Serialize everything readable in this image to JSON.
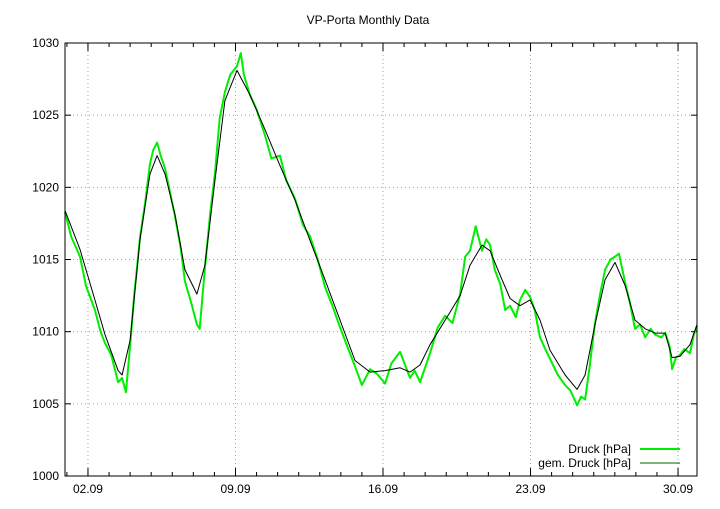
{
  "chart_data": {
    "type": "line",
    "title": "VP-Porta Monthly Data",
    "xlabel": "",
    "ylabel": "",
    "xlim": [
      0.91,
      30.9
    ],
    "ylim": [
      1000,
      1030
    ],
    "grid": true,
    "legend_position": "bottom-right",
    "y_ticks": [
      1000,
      1005,
      1010,
      1015,
      1020,
      1025,
      1030
    ],
    "y_tick_labels": [
      "1000",
      "1005",
      "1010",
      "1015",
      "1020",
      "1025",
      "1030"
    ],
    "x_ticks": [
      2,
      9,
      16,
      23,
      30
    ],
    "x_tick_labels": [
      "02.09",
      "09.09",
      "16.09",
      "23.09",
      "30.09"
    ],
    "x_minor_step": 1,
    "x_unit": "day of September",
    "series": [
      {
        "name": "Druck [hPa]",
        "color": "#00ee00",
        "x": [
          0.91,
          1.2,
          1.62,
          1.9,
          2.33,
          2.6,
          2.81,
          3.1,
          3.43,
          3.62,
          3.8,
          4.0,
          4.2,
          4.47,
          4.7,
          4.94,
          5.1,
          5.28,
          5.45,
          5.66,
          5.9,
          6.13,
          6.4,
          6.6,
          6.9,
          7.17,
          7.3,
          7.55,
          7.8,
          8.03,
          8.25,
          8.5,
          8.75,
          9.07,
          9.25,
          9.4,
          9.69,
          10.0,
          10.4,
          10.7,
          11.11,
          11.4,
          11.83,
          12.2,
          12.54,
          12.9,
          13.25,
          13.6,
          13.96,
          14.3,
          14.67,
          15.0,
          15.39,
          15.7,
          16.1,
          16.4,
          16.81,
          17.28,
          17.5,
          17.76,
          18.23,
          18.6,
          18.95,
          19.3,
          19.66,
          19.9,
          20.13,
          20.4,
          20.7,
          20.9,
          21.08,
          21.3,
          21.56,
          21.8,
          22.03,
          22.3,
          22.5,
          22.75,
          22.98,
          23.2,
          23.45,
          23.7,
          23.93,
          24.3,
          24.64,
          24.9,
          25.21,
          25.4,
          25.59,
          25.8,
          26.06,
          26.3,
          26.54,
          26.8,
          27.01,
          27.2,
          27.49,
          27.7,
          27.96,
          28.2,
          28.44,
          28.7,
          28.91,
          29.2,
          29.39,
          29.6,
          29.72,
          29.9,
          30.1,
          30.3,
          30.57,
          30.75,
          30.9
        ],
        "values": [
          1018.3,
          1016.6,
          1015.2,
          1013.2,
          1011.5,
          1010.0,
          1009.2,
          1008.4,
          1006.5,
          1006.8,
          1005.8,
          1009.0,
          1012.6,
          1016.5,
          1018.8,
          1021.6,
          1022.6,
          1023.1,
          1022.2,
          1021.3,
          1019.6,
          1018.0,
          1015.8,
          1013.5,
          1012.0,
          1010.5,
          1010.2,
          1014.4,
          1018.2,
          1021.0,
          1024.8,
          1026.6,
          1027.8,
          1028.4,
          1029.3,
          1027.8,
          1026.4,
          1025.4,
          1023.6,
          1022.0,
          1022.2,
          1020.5,
          1019.2,
          1017.4,
          1016.6,
          1015.0,
          1013.1,
          1011.8,
          1010.3,
          1009.0,
          1007.6,
          1006.3,
          1007.4,
          1007.1,
          1006.4,
          1007.8,
          1008.6,
          1006.8,
          1007.3,
          1006.5,
          1008.5,
          1010.3,
          1011.1,
          1010.6,
          1012.6,
          1015.2,
          1015.6,
          1017.3,
          1015.6,
          1016.4,
          1016.0,
          1014.3,
          1013.3,
          1011.5,
          1011.8,
          1011.0,
          1012.2,
          1012.9,
          1012.4,
          1011.5,
          1009.6,
          1008.8,
          1008.1,
          1007.0,
          1006.3,
          1005.9,
          1004.9,
          1005.5,
          1005.3,
          1007.5,
          1010.6,
          1012.6,
          1014.3,
          1015.0,
          1015.2,
          1015.4,
          1013.4,
          1012.1,
          1010.2,
          1010.5,
          1009.6,
          1010.2,
          1009.8,
          1009.6,
          1009.9,
          1009.0,
          1007.4,
          1008.2,
          1008.4,
          1008.8,
          1008.5,
          1009.8,
          1010.4
        ],
        "line_width": "thick"
      },
      {
        "name": "gem. Druck [hPa]",
        "color": "#000000",
        "x": [
          0.91,
          1.62,
          2.33,
          2.81,
          3.43,
          3.62,
          4.0,
          4.47,
          4.94,
          5.28,
          5.66,
          6.13,
          6.6,
          7.17,
          7.55,
          8.03,
          8.5,
          9.07,
          9.69,
          10.4,
          11.11,
          11.83,
          12.54,
          13.25,
          13.96,
          14.67,
          15.39,
          16.1,
          16.81,
          17.28,
          17.76,
          18.23,
          18.95,
          19.66,
          20.13,
          20.7,
          21.08,
          21.56,
          22.03,
          22.5,
          22.98,
          23.45,
          23.93,
          24.64,
          25.21,
          25.59,
          26.06,
          26.54,
          27.01,
          27.49,
          27.96,
          28.44,
          28.91,
          29.39,
          29.72,
          30.1,
          30.57,
          30.9
        ],
        "values": [
          1018.4,
          1015.7,
          1012.2,
          1009.8,
          1007.3,
          1007.0,
          1009.4,
          1016.4,
          1020.9,
          1022.2,
          1020.9,
          1018.1,
          1014.3,
          1012.6,
          1014.6,
          1020.5,
          1026.0,
          1028.1,
          1026.4,
          1024.0,
          1021.5,
          1019.1,
          1016.3,
          1013.6,
          1010.8,
          1008.0,
          1007.2,
          1007.3,
          1007.5,
          1007.2,
          1007.7,
          1009.1,
          1010.8,
          1012.5,
          1014.6,
          1016.0,
          1015.6,
          1013.9,
          1012.3,
          1011.8,
          1012.2,
          1010.8,
          1008.7,
          1007.0,
          1006.0,
          1007.0,
          1010.5,
          1013.6,
          1014.8,
          1013.2,
          1010.8,
          1010.2,
          1009.9,
          1009.9,
          1008.2,
          1008.3,
          1009.1,
          1010.5
        ],
        "line_width": "thin"
      }
    ]
  }
}
